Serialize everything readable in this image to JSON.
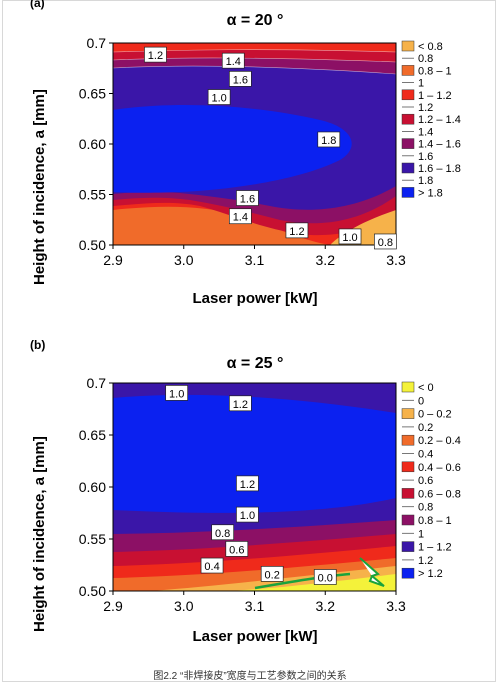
{
  "caption": "图2.2 “非焊接皮”宽度与工艺参数之间的关系",
  "chart_data": [
    {
      "panel": "(a)",
      "type": "heatmap",
      "title": "α = 20 °",
      "xlabel": "Laser power [kW]",
      "ylabel": "Height of incidence, a [mm]",
      "xlim": [
        2.9,
        3.3
      ],
      "ylim": [
        0.5,
        0.7
      ],
      "xticks": [
        "2.9",
        "3.0",
        "3.1",
        "3.2",
        "3.3"
      ],
      "yticks": [
        "0.50",
        "0.55",
        "0.60",
        "0.65",
        "0.7"
      ],
      "legend_position": "right",
      "legend": [
        {
          "label": "< 0.8",
          "color": "#f6b24a"
        },
        {
          "label": "0.8",
          "color": null
        },
        {
          "label": "0.8 – 1",
          "color": "#f06b2a"
        },
        {
          "label": "1",
          "color": null
        },
        {
          "label": "1 – 1.2",
          "color": "#ef2a1b"
        },
        {
          "label": "1.2",
          "color": null
        },
        {
          "label": "1.2 – 1.4",
          "color": "#c81032"
        },
        {
          "label": "1.4",
          "color": null
        },
        {
          "label": "1.4 – 1.6",
          "color": "#8c1065"
        },
        {
          "label": "1.6",
          "color": null
        },
        {
          "label": "1.6 – 1.8",
          "color": "#3a16a8"
        },
        {
          "label": "1.8",
          "color": null
        },
        {
          "label": "> 1.8",
          "color": "#0b21f0"
        }
      ],
      "contour_labels": [
        {
          "text": "1.2",
          "x": 2.96,
          "y": 0.688
        },
        {
          "text": "1.4",
          "x": 3.07,
          "y": 0.682
        },
        {
          "text": "1.6",
          "x": 3.08,
          "y": 0.664
        },
        {
          "text": "1.0",
          "x": 3.05,
          "y": 0.646
        },
        {
          "text": "1.8",
          "x": 3.205,
          "y": 0.604
        },
        {
          "text": "1.6",
          "x": 3.09,
          "y": 0.546
        },
        {
          "text": "1.4",
          "x": 3.08,
          "y": 0.528
        },
        {
          "text": "1.2",
          "x": 3.16,
          "y": 0.514
        },
        {
          "text": "1.0",
          "x": 3.235,
          "y": 0.508
        },
        {
          "text": "0.8",
          "x": 3.285,
          "y": 0.503
        }
      ]
    },
    {
      "panel": "(b)",
      "type": "heatmap",
      "title": "α = 25 °",
      "xlabel": "Laser power [kW]",
      "ylabel": "Height of incidence, a [mm]",
      "xlim": [
        2.9,
        3.3
      ],
      "ylim": [
        0.5,
        0.7
      ],
      "xticks": [
        "2.9",
        "3.0",
        "3.1",
        "3.2",
        "3.3"
      ],
      "yticks": [
        "0.50",
        "0.55",
        "0.60",
        "0.65",
        "0.7"
      ],
      "legend_position": "right",
      "legend": [
        {
          "label": "< 0",
          "color": "#f4f23a"
        },
        {
          "label": "0",
          "color": null
        },
        {
          "label": "0 – 0.2",
          "color": "#f6b24a"
        },
        {
          "label": "0.2",
          "color": null
        },
        {
          "label": "0.2 – 0.4",
          "color": "#f06b2a"
        },
        {
          "label": "0.4",
          "color": null
        },
        {
          "label": "0.4 – 0.6",
          "color": "#ef2a1b"
        },
        {
          "label": "0.6",
          "color": null
        },
        {
          "label": "0.6 – 0.8",
          "color": "#c81032"
        },
        {
          "label": "0.8",
          "color": null
        },
        {
          "label": "0.8 – 1",
          "color": "#8c1065"
        },
        {
          "label": "1",
          "color": null
        },
        {
          "label": "1 – 1.2",
          "color": "#3a16a8"
        },
        {
          "label": "1.2",
          "color": null
        },
        {
          "label": "> 1.2",
          "color": "#0b21f0"
        }
      ],
      "contour_labels": [
        {
          "text": "1.0",
          "x": 2.99,
          "y": 0.69
        },
        {
          "text": "1.2",
          "x": 3.08,
          "y": 0.68
        },
        {
          "text": "1.2",
          "x": 3.09,
          "y": 0.603
        },
        {
          "text": "1.0",
          "x": 3.09,
          "y": 0.573
        },
        {
          "text": "0.8",
          "x": 3.055,
          "y": 0.556
        },
        {
          "text": "0.6",
          "x": 3.075,
          "y": 0.54
        },
        {
          "text": "0.4",
          "x": 3.04,
          "y": 0.524
        },
        {
          "text": "0.2",
          "x": 3.125,
          "y": 0.516
        },
        {
          "text": "0.0",
          "x": 3.2,
          "y": 0.513
        }
      ]
    }
  ]
}
